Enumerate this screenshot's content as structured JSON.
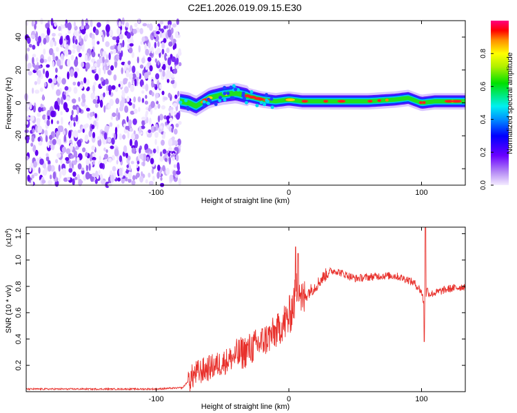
{
  "title": "C2E1.2026.019.09.15.E30",
  "chart_data": [
    {
      "type": "heatmap",
      "name": "spectrogram",
      "xlabel": "Height of straight line (km)",
      "ylabel": "Frequency (Hz)",
      "xlim": [
        -198,
        133
      ],
      "ylim": [
        -50,
        50
      ],
      "xticks": [
        -100,
        0,
        100
      ],
      "yticks": [
        -40,
        -20,
        0,
        20,
        40
      ],
      "xtick_labels": [
        "-100",
        "0",
        "100"
      ],
      "ytick_labels": [
        "-40",
        "-20",
        "0",
        "20",
        "40"
      ],
      "noise_region_x": [
        -198,
        -82
      ],
      "signal_region_x": [
        -82,
        133
      ],
      "signal_track": {
        "x": [
          -82,
          -75,
          -70,
          -60,
          -50,
          -40,
          -35,
          -30,
          -20,
          -10,
          0,
          10,
          20,
          40,
          60,
          80,
          90,
          100,
          110,
          133
        ],
        "freq": [
          1,
          0,
          -2,
          3,
          5,
          6,
          5,
          4,
          2,
          1,
          2,
          1,
          1,
          1,
          1,
          2,
          3,
          0,
          1,
          1
        ]
      },
      "colorbar": {
        "label": "Normalized spectral amplitude",
        "min": 0,
        "max": 1,
        "ticks": [
          0.0,
          0.2,
          0.4,
          0.6,
          0.8
        ],
        "tick_labels": [
          "0.0",
          "0.2",
          "0.4",
          "0.6",
          "0.8"
        ]
      }
    },
    {
      "type": "line",
      "name": "snr",
      "xlabel": "Height of straight line (km)",
      "ylabel": "SNR (10 * v/v)",
      "exponent_label": "(x10",
      "exponent_power": "4",
      "color": "#e8302b",
      "xlim": [
        -198,
        133
      ],
      "ylim": [
        0,
        1.25
      ],
      "xticks": [
        -100,
        0,
        100
      ],
      "yticks": [
        0.2,
        0.4,
        0.6,
        0.8,
        1.0,
        1.2
      ],
      "xtick_labels": [
        "-100",
        "0",
        "100"
      ],
      "ytick_labels": [
        "0.2",
        "0.4",
        "0.6",
        "0.8",
        "1.0",
        "1.2"
      ],
      "envelope": {
        "x": [
          -198,
          -150,
          -100,
          -80,
          -76,
          -70,
          -60,
          -50,
          -40,
          -30,
          -20,
          -10,
          0,
          5,
          7,
          10,
          15,
          20,
          25,
          30,
          35,
          40,
          50,
          60,
          70,
          80,
          90,
          95,
          100,
          102,
          103,
          104,
          106,
          110,
          120,
          133
        ],
        "y": [
          0.02,
          0.02,
          0.02,
          0.03,
          0.08,
          0.14,
          0.18,
          0.22,
          0.27,
          0.32,
          0.38,
          0.45,
          0.56,
          0.72,
          0.85,
          0.68,
          0.76,
          0.8,
          0.86,
          0.91,
          0.92,
          0.9,
          0.86,
          0.87,
          0.88,
          0.88,
          0.85,
          0.82,
          0.76,
          0.66,
          0.7,
          0.78,
          0.74,
          0.75,
          0.78,
          0.8
        ]
      },
      "spikes": [
        {
          "x": 5,
          "y": 1.1
        },
        {
          "x": 7,
          "y": 1.05
        },
        {
          "x": 103,
          "y": 1.25
        },
        {
          "x": 102,
          "y": 0.38
        }
      ]
    }
  ]
}
